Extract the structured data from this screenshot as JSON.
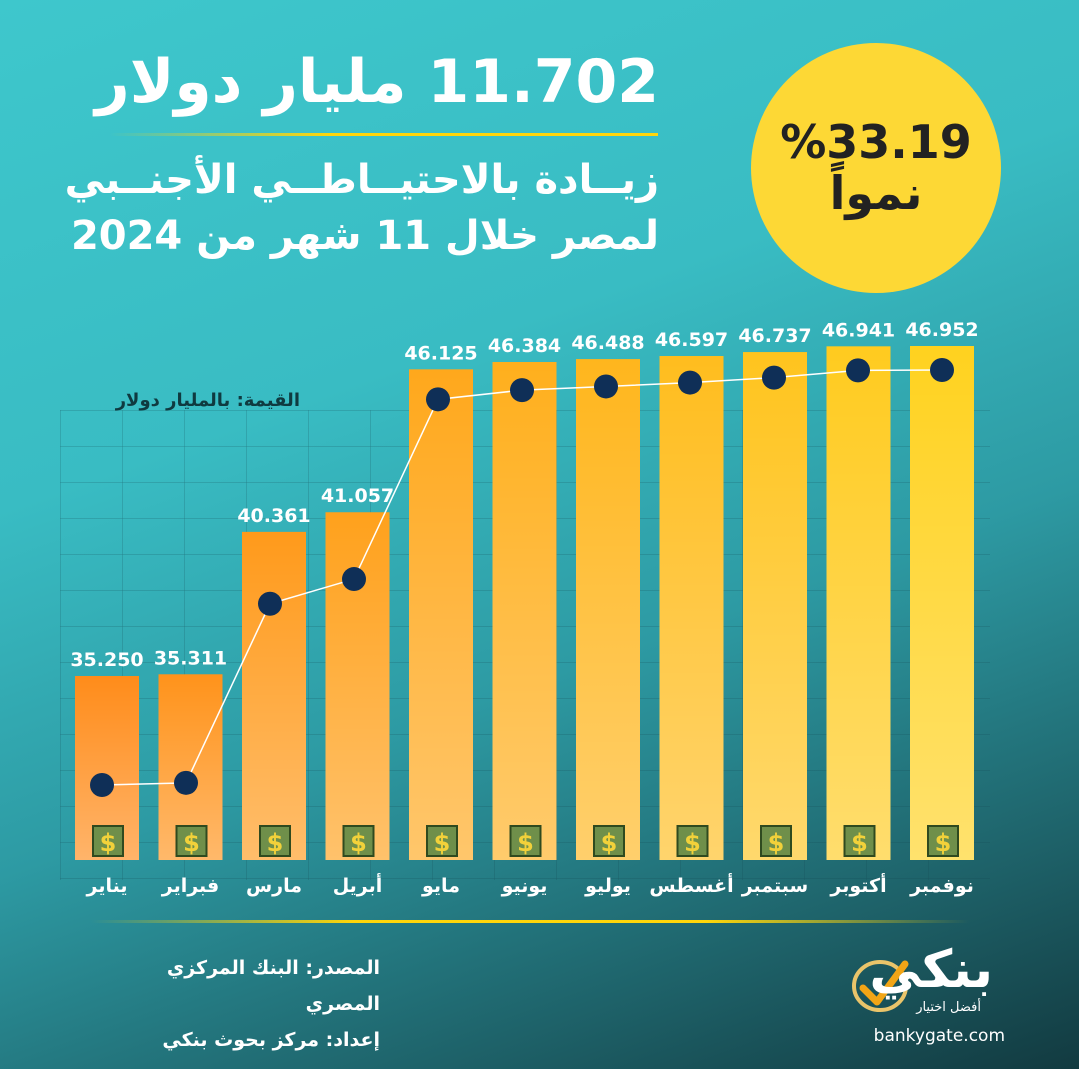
{
  "headline": "11.702 مليار دولار",
  "subtitle": {
    "line1": "زيــادة بالاحتيــاطــي الأجنــبي",
    "line2": "لمصر خلال 11 شهر من 2024"
  },
  "growth": {
    "value": "%33.19",
    "label": "نمواً"
  },
  "unit_note": "القيمة: بالمليار دولار",
  "source": {
    "line1": "المصدر: البنك المركزي المصري",
    "line2": "إعداد: مركز بحوث بنكي"
  },
  "logo": {
    "word": "بنكي",
    "tagline": "أفضل اختيار",
    "url": "bankygate.com"
  },
  "colors": {
    "bar_first": "#ff8c1a",
    "bar_last": "#ffd21f",
    "dot": "#0f2f57",
    "line": "#ffffff",
    "accent_yellow": "#fdd835"
  },
  "chart_data": {
    "type": "bar",
    "categories": [
      "يناير",
      "فبراير",
      "مارس",
      "أبريل",
      "مايو",
      "يونيو",
      "يوليو",
      "أغسطس",
      "سبتمبر",
      "أكتوبر",
      "نوفمبر"
    ],
    "values": [
      35.25,
      35.311,
      40.361,
      41.057,
      46.125,
      46.384,
      46.488,
      46.597,
      46.737,
      46.941,
      46.952
    ],
    "value_labels": [
      "35.250",
      "35.311",
      "40.361",
      "41.057",
      "46.125",
      "46.384",
      "46.488",
      "46.597",
      "46.737",
      "46.941",
      "46.952"
    ],
    "title": "",
    "xlabel": "",
    "ylabel": "القيمة: بالمليار دولار",
    "overlay": "line with dots through bars",
    "icon": "dollar-icon",
    "grid": true
  }
}
